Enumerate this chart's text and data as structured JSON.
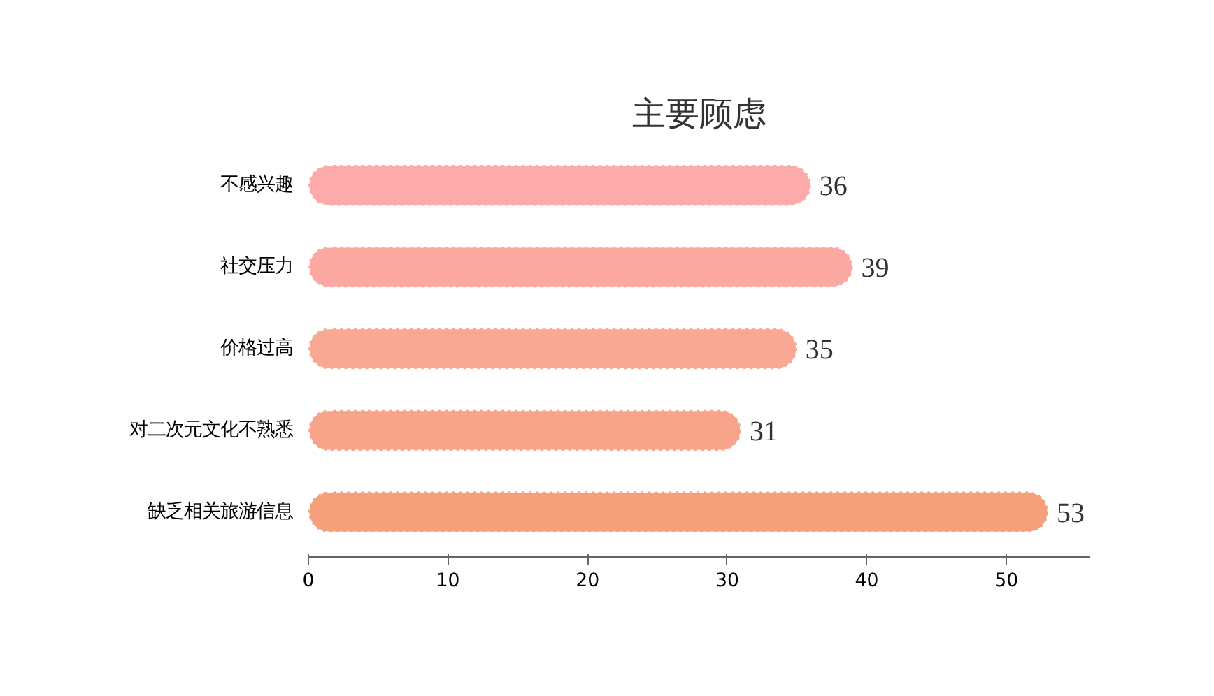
{
  "chart_data": {
    "type": "bar",
    "orientation": "horizontal",
    "title": "主要顾虑",
    "categories": [
      "不感兴趣",
      "社交压力",
      "价格过高",
      "对二次元文化不熟悉",
      "缺乏相关旅游信息"
    ],
    "values": [
      36,
      39,
      35,
      31,
      53
    ],
    "colors": [
      "#fdaaaa",
      "#fba8a0",
      "#f9a894",
      "#f7a48a",
      "#f5a07a"
    ],
    "xlim": [
      0,
      56
    ],
    "xticks": [
      0,
      10,
      20,
      30,
      40,
      50
    ],
    "grid": false,
    "data_labels": true
  }
}
